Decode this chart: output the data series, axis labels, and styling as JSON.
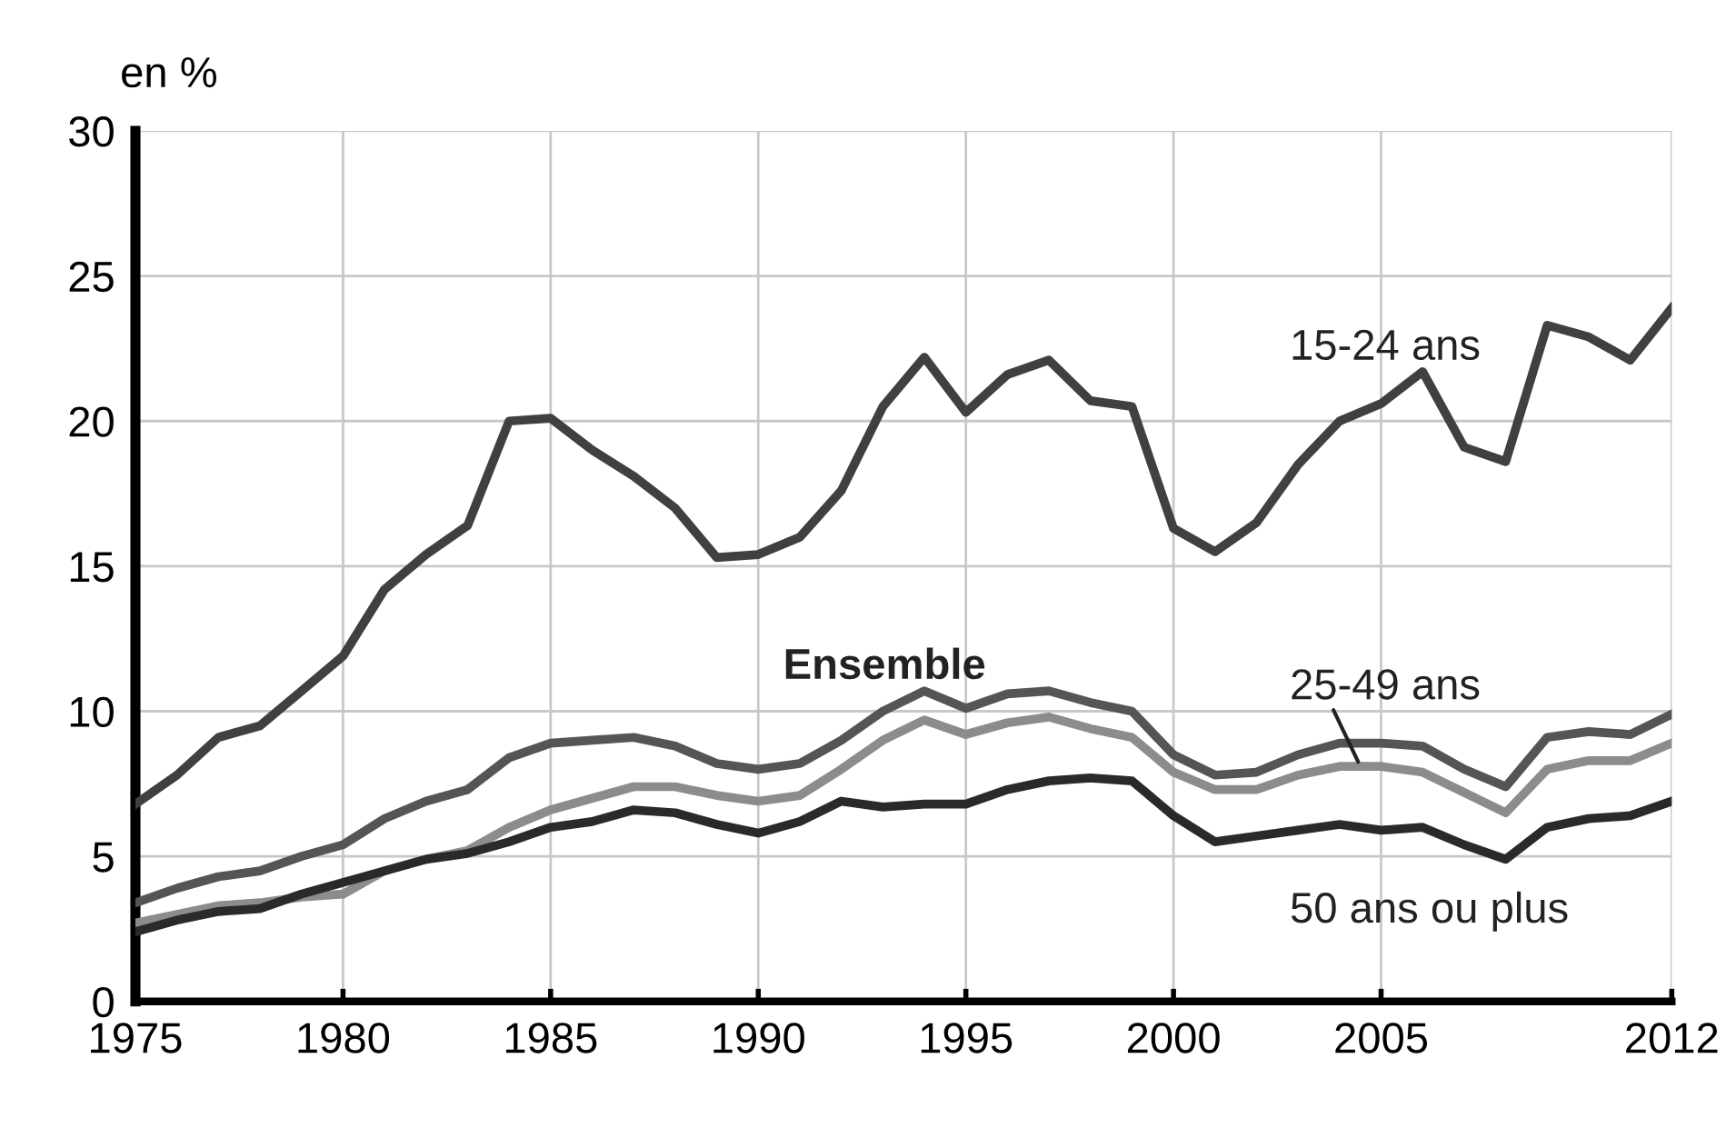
{
  "chart_data": {
    "type": "line",
    "ylabel": "en %",
    "x": [
      1975,
      1976,
      1977,
      1978,
      1979,
      1980,
      1981,
      1982,
      1983,
      1984,
      1985,
      1986,
      1987,
      1988,
      1989,
      1990,
      1991,
      1992,
      1993,
      1994,
      1995,
      1996,
      1997,
      1998,
      1999,
      2000,
      2001,
      2002,
      2003,
      2004,
      2005,
      2006,
      2007,
      2008,
      2009,
      2010,
      2011,
      2012
    ],
    "series": [
      {
        "name": "15-24 ans",
        "color": "#404040",
        "values": [
          6.8,
          7.8,
          9.1,
          9.5,
          10.7,
          11.9,
          14.2,
          15.4,
          16.4,
          20.0,
          20.1,
          19.0,
          18.1,
          17.0,
          15.3,
          15.4,
          16.0,
          17.6,
          20.5,
          22.2,
          20.3,
          21.6,
          22.1,
          20.7,
          20.5,
          16.3,
          15.5,
          16.5,
          18.5,
          20.0,
          20.6,
          21.7,
          19.1,
          18.6,
          23.3,
          22.9,
          22.1,
          23.9
        ]
      },
      {
        "name": "Ensemble",
        "color": "#555555",
        "values": [
          3.4,
          3.9,
          4.3,
          4.5,
          5.0,
          5.4,
          6.3,
          6.9,
          7.3,
          8.4,
          8.9,
          9.0,
          9.1,
          8.8,
          8.2,
          8.0,
          8.2,
          9.0,
          10.0,
          10.7,
          10.1,
          10.6,
          10.7,
          10.3,
          10.0,
          8.5,
          7.8,
          7.9,
          8.5,
          8.9,
          8.9,
          8.8,
          8.0,
          7.4,
          9.1,
          9.3,
          9.2,
          9.9
        ]
      },
      {
        "name": "25-49 ans",
        "color": "#8c8c8c",
        "values": [
          2.7,
          3.0,
          3.3,
          3.4,
          3.6,
          3.7,
          4.5,
          4.9,
          5.2,
          6.0,
          6.6,
          7.0,
          7.4,
          7.4,
          7.1,
          6.9,
          7.1,
          8.0,
          9.0,
          9.7,
          9.2,
          9.6,
          9.8,
          9.4,
          9.1,
          7.9,
          7.3,
          7.3,
          7.8,
          8.1,
          8.1,
          7.9,
          7.2,
          6.5,
          8.0,
          8.3,
          8.3,
          8.9
        ]
      },
      {
        "name": "50 ans ou plus",
        "color": "#2a2a2a",
        "values": [
          2.4,
          2.8,
          3.1,
          3.2,
          3.7,
          4.1,
          4.5,
          4.9,
          5.1,
          5.5,
          6.0,
          6.2,
          6.6,
          6.5,
          6.1,
          5.8,
          6.2,
          6.9,
          6.7,
          6.8,
          6.8,
          7.3,
          7.6,
          7.7,
          7.6,
          6.4,
          5.5,
          5.7,
          5.9,
          6.1,
          5.9,
          6.0,
          5.4,
          4.9,
          6.0,
          6.3,
          6.4,
          6.9
        ]
      }
    ],
    "xlim": [
      1975,
      2012
    ],
    "ylim": [
      0,
      30
    ],
    "xticks": [
      1975,
      1980,
      1985,
      1990,
      1995,
      2000,
      2005,
      2012
    ],
    "yticks": [
      0,
      5,
      10,
      15,
      20,
      25,
      30
    ],
    "grid": true,
    "legend": false,
    "marker": "none",
    "line_style": "solid"
  }
}
